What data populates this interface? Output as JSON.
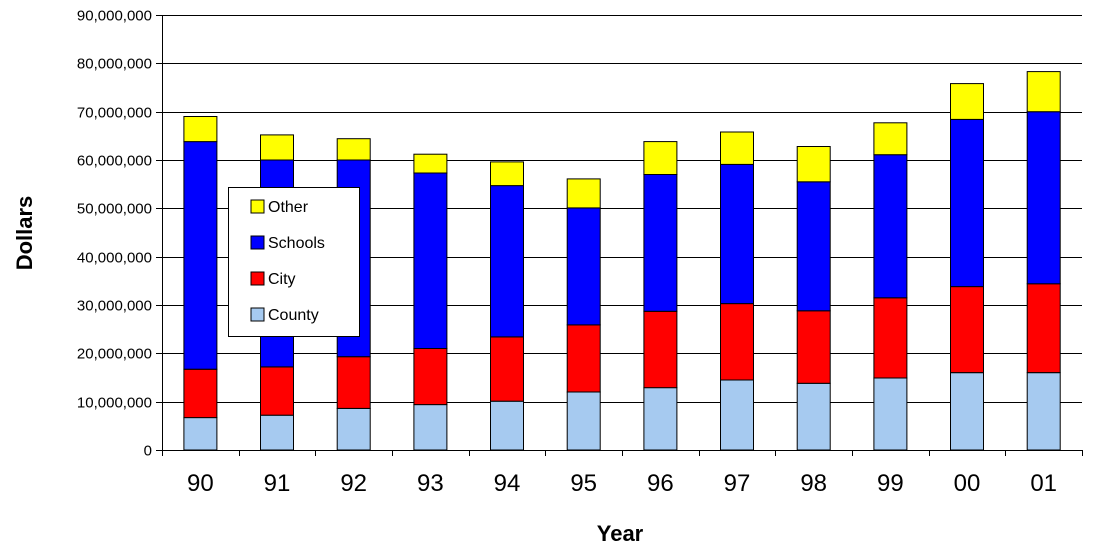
{
  "chart_data": {
    "type": "bar",
    "stacked": true,
    "title": "",
    "xlabel": "Year",
    "ylabel": "Dollars",
    "categories": [
      "90",
      "91",
      "92",
      "93",
      "94",
      "95",
      "96",
      "97",
      "98",
      "99",
      "00",
      "01"
    ],
    "ylim": [
      0,
      90000000
    ],
    "yticks": [
      "0",
      "10,000,000",
      "20,000,000",
      "30,000,000",
      "40,000,000",
      "50,000,000",
      "60,000,000",
      "70,000,000",
      "80,000,000",
      "90,000,000"
    ],
    "grid": true,
    "legend_position": "left",
    "series": [
      {
        "name": "County",
        "color": "#a6caf0",
        "values": [
          6700000,
          7200000,
          8600000,
          9400000,
          10100000,
          12000000,
          12900000,
          14500000,
          13800000,
          14900000,
          16000000,
          16000000
        ]
      },
      {
        "name": "City",
        "color": "#ff0000",
        "values": [
          10000000,
          10000000,
          10700000,
          11600000,
          13300000,
          13900000,
          15800000,
          15800000,
          15000000,
          16600000,
          17800000,
          18400000
        ]
      },
      {
        "name": "Schools",
        "color": "#0000ff",
        "values": [
          47100000,
          42800000,
          40700000,
          36300000,
          31300000,
          24200000,
          28300000,
          28800000,
          26700000,
          29600000,
          34600000,
          35600000
        ]
      },
      {
        "name": "Other",
        "color": "#ffff00",
        "values": [
          5200000,
          5200000,
          4400000,
          3900000,
          4900000,
          6000000,
          6800000,
          6700000,
          7300000,
          6600000,
          7400000,
          8300000
        ]
      }
    ]
  }
}
